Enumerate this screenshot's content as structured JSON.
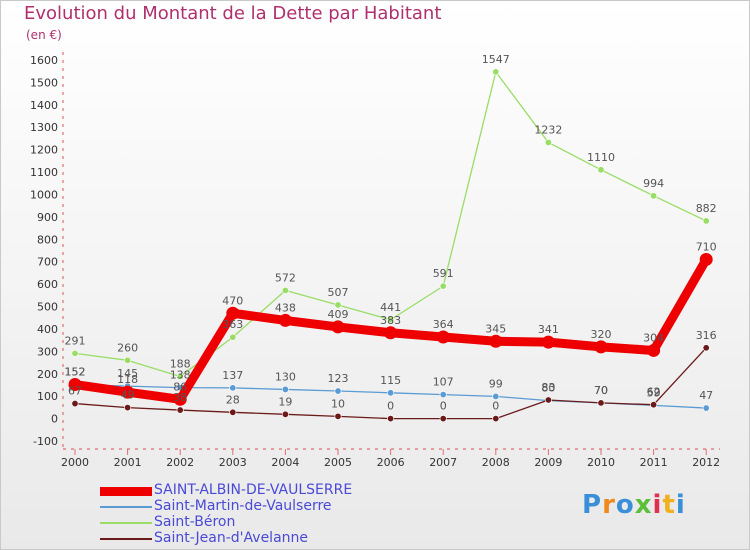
{
  "chart_data": {
    "type": "line",
    "title": "Evolution du Montant de la Dette par Habitant",
    "unit_label": "(en €)",
    "xlabel": "",
    "ylabel": "",
    "x": [
      "2000",
      "2001",
      "2002",
      "2003",
      "2004",
      "2005",
      "2006",
      "2007",
      "2008",
      "2009",
      "2010",
      "2011",
      "2012"
    ],
    "y_ticks": [
      -100,
      0,
      100,
      200,
      300,
      400,
      500,
      600,
      700,
      800,
      900,
      1000,
      1100,
      1200,
      1300,
      1400,
      1500,
      1600
    ],
    "ylim": [
      -100,
      1650
    ],
    "grid": false,
    "legend_position": "bottom-left",
    "series": [
      {
        "name": "SAINT-ALBIN-DE-VAULSERRE",
        "color": "#ee0000",
        "values": [
          152,
          118,
          86,
          470,
          438,
          409,
          383,
          364,
          345,
          341,
          320,
          304,
          710
        ]
      },
      {
        "name": "Saint-Martin-de-Vaulserre",
        "color": "#5a9bd4",
        "values": [
          152,
          145,
          138,
          137,
          130,
          123,
          115,
          107,
          99,
          80,
          70,
          59,
          47
        ]
      },
      {
        "name": "Saint-Béron",
        "color": "#99dd66",
        "values": [
          291,
          260,
          188,
          363,
          572,
          507,
          441,
          591,
          1547,
          1232,
          1110,
          994,
          882
        ]
      },
      {
        "name": "Saint-Jean-d'Avelanne",
        "color": "#6b1a1a",
        "values": [
          67,
          49,
          38,
          28,
          19,
          10,
          0,
          0,
          0,
          83,
          70,
          62,
          316
        ]
      }
    ]
  },
  "brand": {
    "logo_text": "Proxiti"
  }
}
